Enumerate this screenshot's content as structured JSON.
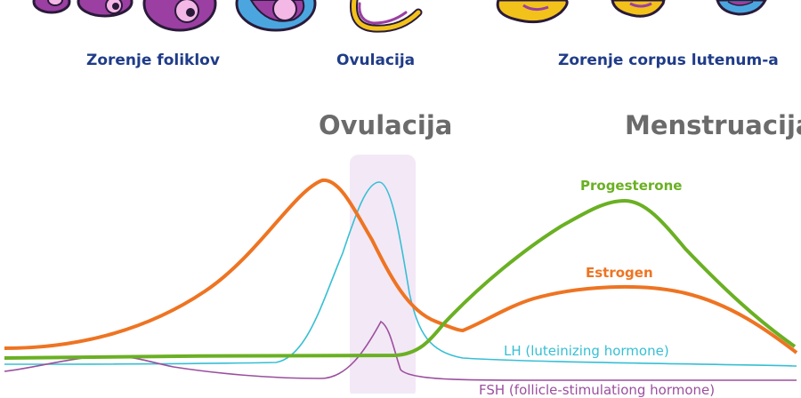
{
  "phases": {
    "follicle": "Zorenje foliklov",
    "ovulation": "Ovulacija",
    "corpus": "Zorenje corpus lutenum-a"
  },
  "markers": {
    "ovulation": "Ovulacija",
    "menstruation": "Menstruacija"
  },
  "hormones": {
    "progesterone": "Progesterone",
    "estrogen": "Estrogen",
    "lh": "LH (luteinizing hormone)",
    "fsh": "FSH (follicle-stimulationg hormone)"
  },
  "colors": {
    "phase_text": "#1f3c88",
    "marker_text": "#6b6b6b",
    "progesterone": "#6ab023",
    "estrogen": "#ee7422",
    "lh": "#36bfd4",
    "fsh": "#9b4f9e",
    "ovulation_band": "#f3e8f6"
  }
}
